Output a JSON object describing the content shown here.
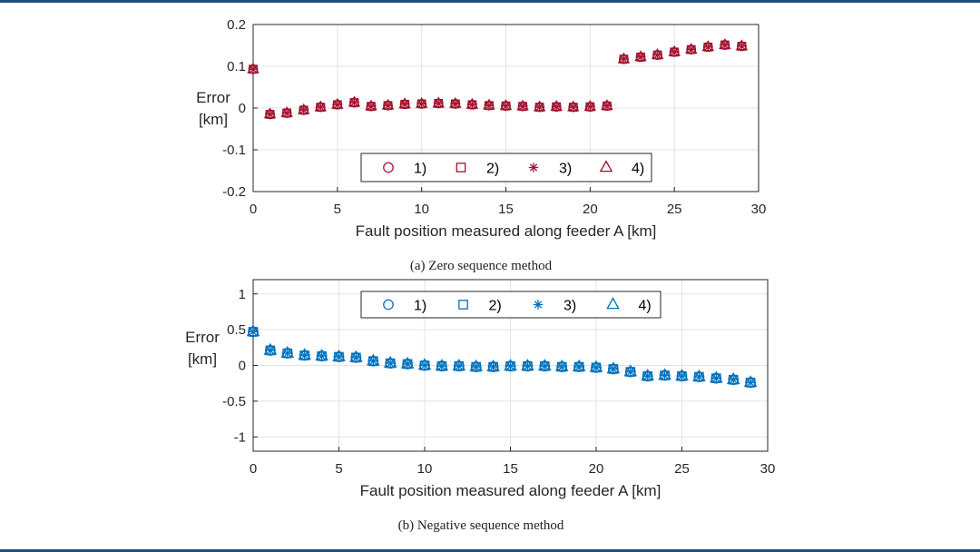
{
  "chart_data": [
    {
      "type": "scatter",
      "id": "zero",
      "caption": "(a) Zero sequence method",
      "xlabel": "Fault position measured along feeder A [km]",
      "ylabel_lines": [
        "Error",
        "[km]"
      ],
      "xlim": [
        0,
        30
      ],
      "ylim": [
        -0.2,
        0.2
      ],
      "xticks": [
        0,
        5,
        10,
        15,
        20,
        25,
        30
      ],
      "xtick_labels": [
        "0",
        "5",
        "10",
        "15",
        "20",
        "25",
        "30"
      ],
      "yticks": [
        -0.2,
        -0.1,
        0,
        0.1,
        0.2
      ],
      "ytick_labels": [
        "-0.2",
        "-0.1",
        "0",
        "0.1",
        "0.2"
      ],
      "grid": true,
      "legend_position": "bottom-center",
      "color": "#a2142f",
      "x": [
        0,
        1,
        2,
        3,
        4,
        5,
        6,
        7,
        8,
        9,
        10,
        11,
        12,
        13,
        14,
        15,
        16,
        17,
        18,
        19,
        20,
        21,
        22,
        23,
        24,
        25,
        26,
        27,
        28,
        29
      ],
      "series": [
        {
          "name": "1)",
          "marker": "circle",
          "values": [
            0.093,
            -0.015,
            -0.012,
            -0.005,
            0.002,
            0.008,
            0.013,
            0.004,
            0.006,
            0.009,
            0.01,
            0.011,
            0.01,
            0.008,
            0.006,
            0.005,
            0.004,
            0.002,
            0.003,
            0.002,
            0.003,
            0.005,
            0.117,
            0.122,
            0.127,
            0.134,
            0.14,
            0.146,
            0.151,
            0.148
          ]
        },
        {
          "name": "2)",
          "marker": "square",
          "values": [
            0.093,
            -0.015,
            -0.012,
            -0.005,
            0.002,
            0.008,
            0.013,
            0.004,
            0.006,
            0.009,
            0.01,
            0.011,
            0.01,
            0.008,
            0.006,
            0.005,
            0.004,
            0.002,
            0.003,
            0.002,
            0.003,
            0.005,
            0.117,
            0.122,
            0.127,
            0.134,
            0.14,
            0.146,
            0.151,
            0.148
          ]
        },
        {
          "name": "3)",
          "marker": "asterisk",
          "values": [
            0.093,
            -0.015,
            -0.012,
            -0.005,
            0.002,
            0.008,
            0.013,
            0.004,
            0.006,
            0.009,
            0.01,
            0.011,
            0.01,
            0.008,
            0.006,
            0.005,
            0.004,
            0.002,
            0.003,
            0.002,
            0.003,
            0.005,
            0.117,
            0.122,
            0.127,
            0.134,
            0.14,
            0.146,
            0.151,
            0.148
          ]
        },
        {
          "name": "4)",
          "marker": "triangle",
          "values": [
            0.093,
            -0.015,
            -0.012,
            -0.005,
            0.002,
            0.008,
            0.013,
            0.004,
            0.006,
            0.009,
            0.01,
            0.011,
            0.01,
            0.008,
            0.006,
            0.005,
            0.004,
            0.002,
            0.003,
            0.002,
            0.003,
            0.005,
            0.117,
            0.122,
            0.127,
            0.134,
            0.14,
            0.146,
            0.151,
            0.148
          ]
        }
      ]
    },
    {
      "type": "scatter",
      "id": "negative",
      "caption": "(b) Negative sequence method",
      "xlabel": "Fault position measured along feeder A [km]",
      "ylabel_lines": [
        "Error",
        "[km]"
      ],
      "xlim": [
        0,
        30
      ],
      "ylim": [
        -1.2,
        1.2
      ],
      "xticks": [
        0,
        5,
        10,
        15,
        20,
        25,
        30
      ],
      "xtick_labels": [
        "0",
        "5",
        "10",
        "15",
        "20",
        "25",
        "30"
      ],
      "yticks": [
        -1,
        -0.5,
        0,
        0.5,
        1
      ],
      "ytick_labels": [
        "-1",
        "-0.5",
        "0",
        "0.5",
        "1"
      ],
      "grid": true,
      "legend_position": "top-center",
      "color": "#0072bd",
      "x": [
        0,
        1,
        2,
        3,
        4,
        5,
        6,
        7,
        8,
        9,
        10,
        11,
        12,
        13,
        14,
        15,
        16,
        17,
        18,
        19,
        20,
        21,
        22,
        23,
        24,
        25,
        26,
        27,
        28,
        29
      ],
      "series": [
        {
          "name": "1)",
          "marker": "circle",
          "values": [
            0.47,
            0.21,
            0.17,
            0.14,
            0.13,
            0.12,
            0.11,
            0.06,
            0.03,
            0.02,
            0.0,
            -0.01,
            -0.01,
            -0.02,
            -0.02,
            -0.01,
            -0.01,
            -0.01,
            -0.02,
            -0.02,
            -0.03,
            -0.05,
            -0.09,
            -0.15,
            -0.14,
            -0.15,
            -0.16,
            -0.18,
            -0.2,
            -0.24
          ]
        },
        {
          "name": "2)",
          "marker": "square",
          "values": [
            0.47,
            0.21,
            0.17,
            0.14,
            0.13,
            0.12,
            0.11,
            0.06,
            0.03,
            0.02,
            0.0,
            -0.01,
            -0.01,
            -0.02,
            -0.02,
            -0.01,
            -0.01,
            -0.01,
            -0.02,
            -0.02,
            -0.03,
            -0.05,
            -0.09,
            -0.15,
            -0.14,
            -0.15,
            -0.16,
            -0.18,
            -0.2,
            -0.24
          ]
        },
        {
          "name": "3)",
          "marker": "asterisk",
          "values": [
            0.47,
            0.21,
            0.17,
            0.14,
            0.13,
            0.12,
            0.11,
            0.06,
            0.03,
            0.02,
            0.0,
            -0.01,
            -0.01,
            -0.02,
            -0.02,
            -0.01,
            -0.01,
            -0.01,
            -0.02,
            -0.02,
            -0.03,
            -0.05,
            -0.09,
            -0.15,
            -0.14,
            -0.15,
            -0.16,
            -0.18,
            -0.2,
            -0.24
          ]
        },
        {
          "name": "4)",
          "marker": "triangle",
          "values": [
            0.47,
            0.21,
            0.17,
            0.14,
            0.13,
            0.12,
            0.11,
            0.06,
            0.03,
            0.02,
            0.0,
            -0.01,
            -0.01,
            -0.02,
            -0.02,
            -0.01,
            -0.01,
            -0.01,
            -0.02,
            -0.02,
            -0.03,
            -0.05,
            -0.09,
            -0.15,
            -0.14,
            -0.15,
            -0.16,
            -0.18,
            -0.2,
            -0.24
          ]
        }
      ]
    }
  ]
}
